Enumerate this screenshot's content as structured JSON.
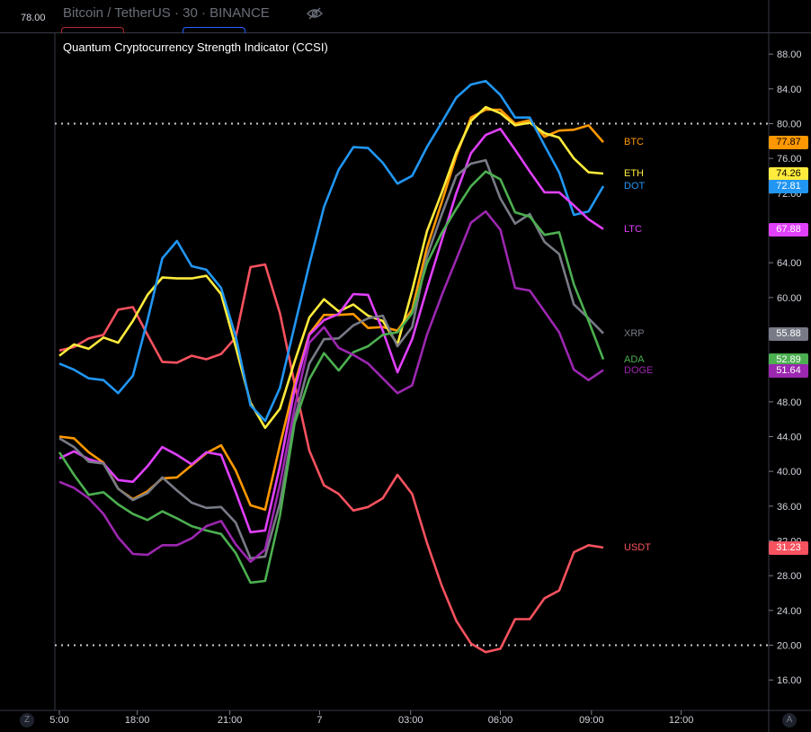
{
  "header": {
    "symbol_title": "Bitcoin / TetherUS · 30 · BINANCE",
    "top_left_value": "78.00"
  },
  "indicator": {
    "title": "Quantum Cryptocurrency Strength Indicator (CCSI)"
  },
  "corner_badges": {
    "left": "Z",
    "right": "A"
  },
  "colors": {
    "background": "#000000",
    "grid_border": "#363a45",
    "axis_text": "#d1d4dc",
    "threshold": "#cccccc"
  },
  "chart_data": {
    "type": "line",
    "x_tick_labels": [
      "5:00",
      "18:00",
      "21:00",
      "7",
      "03:00",
      "06:00",
      "09:00",
      "12:00"
    ],
    "x_tick_index": [
      0,
      5.3,
      11.6,
      17.7,
      23.9,
      30.0,
      36.2,
      42.3
    ],
    "y_ticks": [
      16,
      20,
      24,
      28,
      32,
      36,
      40,
      44,
      48,
      52,
      56,
      60,
      64,
      68,
      72,
      76,
      80,
      84,
      88
    ],
    "ylim": [
      12.5,
      90.5
    ],
    "x_count": 38,
    "thresholds": [
      80,
      20
    ],
    "series": [
      {
        "name": "USDT",
        "color": "#f7525f",
        "last": "31.23",
        "values": [
          53.9,
          54.3,
          55.3,
          55.7,
          58.6,
          58.9,
          55.7,
          52.6,
          52.5,
          53.3,
          52.9,
          53.5,
          55.4,
          63.5,
          63.8,
          58.2,
          50.1,
          42.4,
          38.4,
          37.4,
          35.5,
          35.9,
          36.9,
          39.6,
          37.4,
          31.8,
          26.9,
          22.8,
          20.2,
          19.2,
          19.6,
          23.0,
          23.0,
          25.4,
          26.3,
          30.7,
          31.5,
          31.23
        ]
      },
      {
        "name": "BTC",
        "color": "#ff9800",
        "last": "77.87",
        "values": [
          44.0,
          43.8,
          42.2,
          41.0,
          38.0,
          36.8,
          37.7,
          39.2,
          39.3,
          40.7,
          42.1,
          43.0,
          40.1,
          36.1,
          35.6,
          43.0,
          50.0,
          55.8,
          58.0,
          58.0,
          58.1,
          56.5,
          56.6,
          56.2,
          58.6,
          65.7,
          70.9,
          76.3,
          80.7,
          81.6,
          81.6,
          80.0,
          80.4,
          78.5,
          79.2,
          79.3,
          79.8,
          77.87
        ]
      },
      {
        "name": "ETH",
        "color": "#ffeb3b",
        "last": "74.26",
        "values": [
          53.3,
          54.6,
          54.1,
          55.4,
          54.8,
          57.3,
          60.3,
          62.3,
          62.2,
          62.2,
          62.5,
          60.4,
          54.3,
          47.9,
          45.0,
          47.2,
          52.6,
          57.7,
          59.8,
          58.4,
          59.2,
          57.9,
          57.3,
          54.6,
          60.8,
          67.6,
          72.0,
          76.7,
          80.3,
          81.9,
          81.2,
          79.8,
          80.1,
          78.9,
          78.4,
          76.0,
          74.4,
          74.26
        ]
      },
      {
        "name": "DOT",
        "color": "#2196f3",
        "last": "72.81",
        "values": [
          52.4,
          51.7,
          50.7,
          50.5,
          49.0,
          51.0,
          57.4,
          64.5,
          66.5,
          63.6,
          63.2,
          61.1,
          55.5,
          47.6,
          45.8,
          49.6,
          56.7,
          63.8,
          70.4,
          74.7,
          77.3,
          77.2,
          75.5,
          73.1,
          74.0,
          77.3,
          80.1,
          83.0,
          84.5,
          84.9,
          83.3,
          80.7,
          80.7,
          77.5,
          74.4,
          69.5,
          69.9,
          72.81
        ]
      },
      {
        "name": "LTC",
        "color": "#e040fb",
        "last": "67.88",
        "values": [
          41.5,
          42.3,
          41.4,
          40.9,
          39.0,
          38.8,
          40.6,
          42.8,
          41.9,
          40.8,
          42.2,
          41.9,
          37.6,
          33.0,
          33.2,
          40.6,
          49.4,
          55.7,
          57.4,
          58.1,
          60.4,
          60.3,
          56.2,
          51.4,
          55.2,
          61.0,
          66.5,
          72.0,
          76.6,
          78.7,
          79.4,
          77.0,
          74.5,
          72.1,
          72.1,
          70.6,
          69.0,
          67.88
        ]
      },
      {
        "name": "XRP",
        "color": "#787b86",
        "last": "55.88",
        "values": [
          43.8,
          42.8,
          41.1,
          40.9,
          38.0,
          36.7,
          37.5,
          39.3,
          37.8,
          36.4,
          35.8,
          35.9,
          34.1,
          30.0,
          30.2,
          36.3,
          46.0,
          52.4,
          55.2,
          55.3,
          56.8,
          57.6,
          57.9,
          54.4,
          56.6,
          64.7,
          69.5,
          74.0,
          75.4,
          75.8,
          71.4,
          68.5,
          69.6,
          66.4,
          65.0,
          59.2,
          57.6,
          55.88
        ]
      },
      {
        "name": "ADA",
        "color": "#4caf50",
        "last": "52.89",
        "values": [
          42.2,
          39.6,
          37.3,
          37.6,
          36.2,
          35.1,
          34.4,
          35.4,
          34.6,
          33.7,
          33.2,
          32.8,
          30.6,
          27.2,
          27.4,
          34.9,
          45.5,
          50.6,
          53.6,
          51.6,
          53.7,
          54.4,
          55.7,
          56.0,
          58.2,
          63.9,
          67.4,
          70.2,
          72.8,
          74.5,
          73.6,
          69.8,
          69.3,
          67.2,
          67.5,
          61.5,
          57.3,
          52.89
        ]
      },
      {
        "name": "DOGE",
        "color": "#9c27b0",
        "last": "51.64",
        "values": [
          38.8,
          38.1,
          36.9,
          35.1,
          32.4,
          30.5,
          30.4,
          31.5,
          31.5,
          32.3,
          33.7,
          34.3,
          31.6,
          29.6,
          31.0,
          38.5,
          47.3,
          54.8,
          56.6,
          54.2,
          53.4,
          52.4,
          50.7,
          49.0,
          49.9,
          55.7,
          60.2,
          64.4,
          68.6,
          69.9,
          67.8,
          61.1,
          60.8,
          58.4,
          56.0,
          51.7,
          50.5,
          51.64
        ]
      }
    ]
  }
}
